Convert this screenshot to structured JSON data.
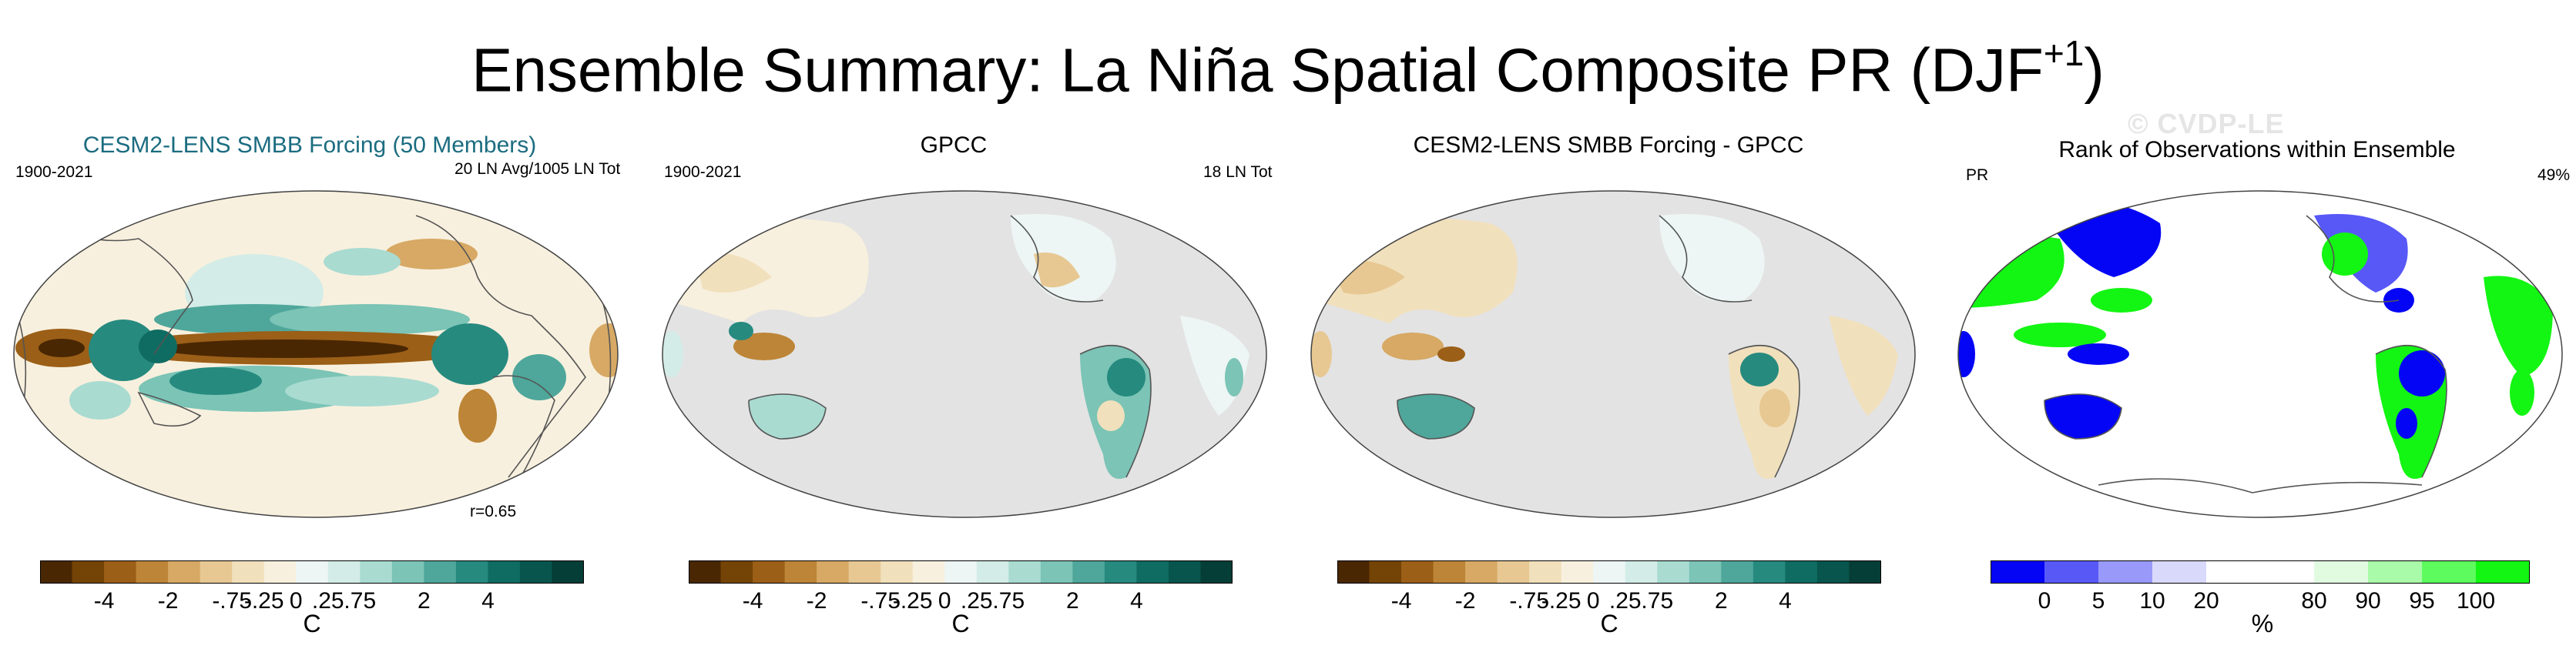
{
  "header": {
    "title": "Ensemble Summary: La Niña Spatial Composite PR (DJF",
    "title_sup": "+1",
    "title_close": ")"
  },
  "watermark": "© CVDP-LE",
  "panels": [
    {
      "title": "CESM2-LENS SMBB Forcing (50 Members)",
      "period": "1900-2021",
      "info": "20 LN Avg/1005 LN Tot",
      "corr": "r=0.65",
      "unit": "C",
      "ticks": [
        "-4",
        "-2",
        "-.75",
        "-.25",
        "0",
        ".25",
        ".75",
        "2",
        "4"
      ]
    },
    {
      "title": "GPCC",
      "period": "1900-2021",
      "info": "18 LN Tot",
      "unit": "C",
      "ticks": [
        "-4",
        "-2",
        "-.75",
        "-.25",
        "0",
        ".25",
        ".75",
        "2",
        "4"
      ]
    },
    {
      "title": "CESM2-LENS SMBB Forcing - GPCC",
      "unit": "C",
      "ticks": [
        "-4",
        "-2",
        "-.75",
        "-.25",
        "0",
        ".25",
        ".75",
        "2",
        "4"
      ]
    },
    {
      "title": "Rank of Observations within Ensemble",
      "period": "PR",
      "info": "49%",
      "unit": "%",
      "ticks": [
        "0",
        "5",
        "10",
        "20",
        "80",
        "90",
        "95",
        "100"
      ]
    }
  ],
  "colors": {
    "diverging": [
      "#4a2703",
      "#744406",
      "#9b5f17",
      "#bd8537",
      "#d7a964",
      "#e7c892",
      "#f1e0bc",
      "#f8f0de",
      "#edf6f4",
      "#d3ece7",
      "#a9dbd1",
      "#7bc4b6",
      "#4ea79a",
      "#268a7f",
      "#0f6c62",
      "#07554c",
      "#053e36"
    ],
    "rank": [
      "#0505f5",
      "#5858f7",
      "#9999fa",
      "#d9d9fb",
      "#ffffff",
      "#ffffff",
      "#e1fbe1",
      "#a9fba9",
      "#5dfb5d",
      "#13f513"
    ],
    "ocean_mask": "#e3e3e3",
    "title_teal": "#1b6c80"
  }
}
